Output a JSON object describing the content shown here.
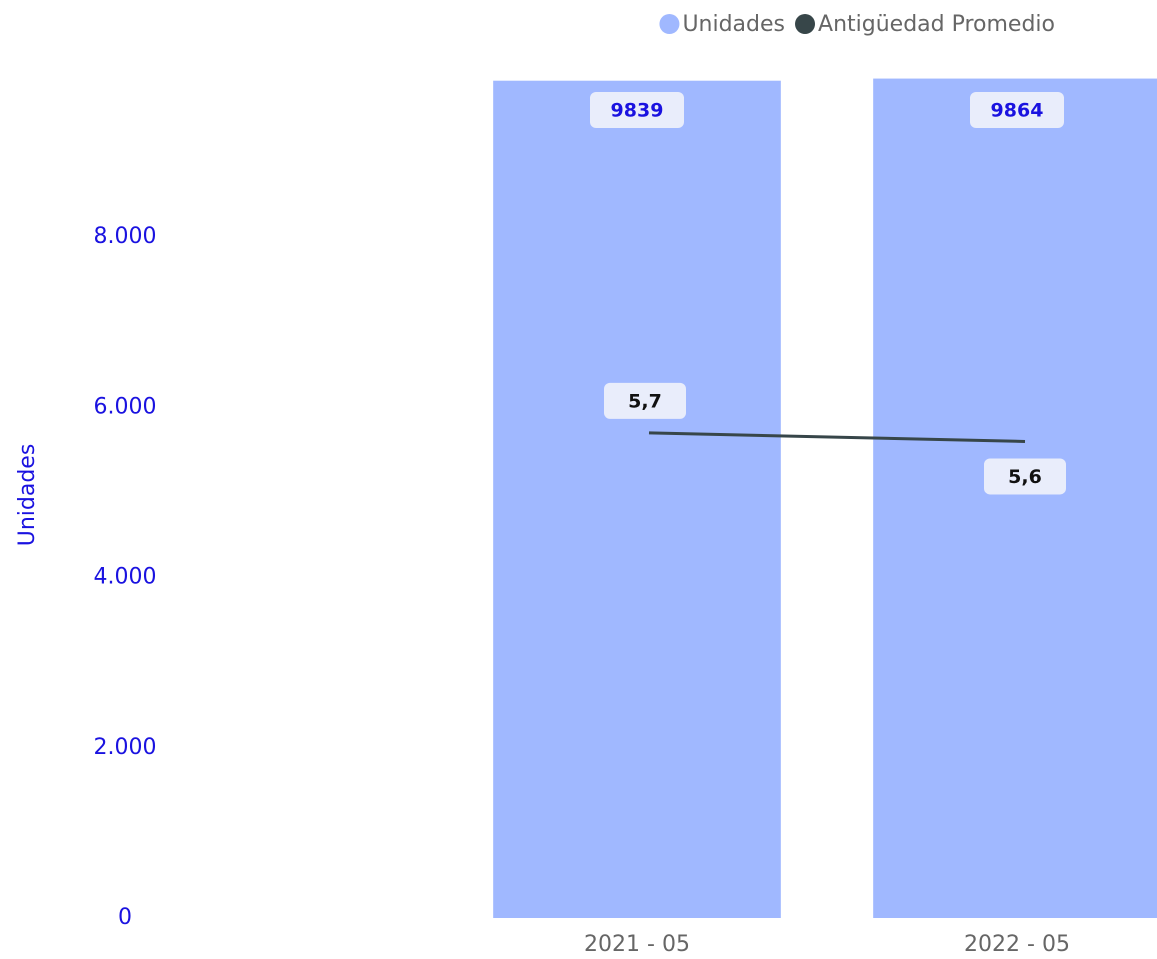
{
  "chart_data": {
    "type": "combo",
    "categories": [
      "2021 - 05",
      "2022 - 05"
    ],
    "series": [
      {
        "name": "Unidades",
        "type": "bar",
        "color": "#a0b8ff",
        "values": [
          9839,
          9864
        ]
      },
      {
        "name": "Antigüedad Promedio",
        "type": "line",
        "axis": "y2",
        "color": "#374649",
        "values": [
          5.7,
          5.6
        ],
        "value_labels": [
          "5,7",
          "5,6"
        ]
      }
    ],
    "y_label": "Unidades",
    "ylim": [
      0,
      10000
    ],
    "yticks": [
      0,
      {
        "value": 2000,
        "label": "2.000"
      },
      {
        "value": 4000,
        "label": "4.000"
      },
      {
        "value": 6000,
        "label": "6.000"
      },
      {
        "value": 8000,
        "label": "8.000"
      }
    ],
    "y2lim": [
      0,
      10
    ],
    "grid": false,
    "legend": "top-right"
  }
}
